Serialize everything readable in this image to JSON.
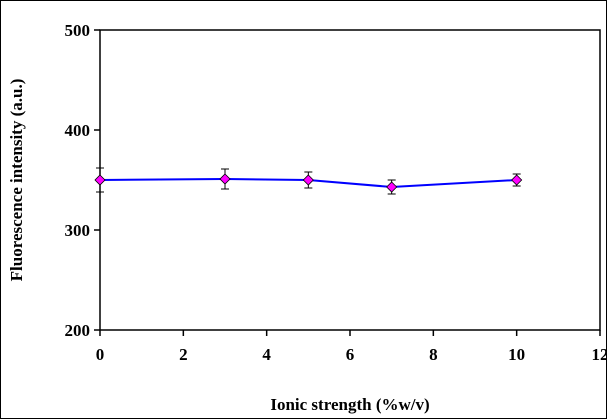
{
  "chart_data": {
    "type": "scatter",
    "title": "",
    "xlabel": "Ionic strength (%w/v)",
    "ylabel": "Fluorescence intensity (a.u.)",
    "xlim": [
      0,
      12
    ],
    "ylim": [
      200,
      500
    ],
    "x_ticks": [
      0,
      2,
      4,
      6,
      8,
      10,
      12
    ],
    "y_ticks": [
      200,
      300,
      400,
      500
    ],
    "grid": false,
    "legend": "none",
    "series": [
      {
        "x": [
          0,
          3,
          5,
          7,
          10
        ],
        "y": [
          350,
          351,
          350,
          343,
          350
        ],
        "error": [
          12,
          10,
          8,
          7,
          6
        ],
        "line_color": "#0000ff",
        "marker": "diamond",
        "marker_color": "#ff00ff"
      }
    ]
  }
}
